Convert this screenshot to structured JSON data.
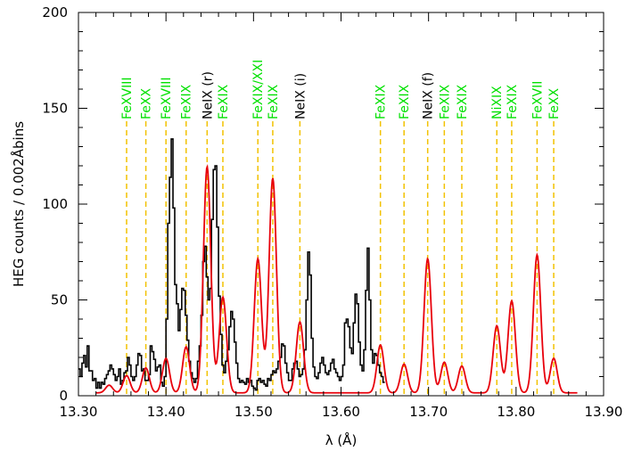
{
  "chart_data": {
    "type": "line",
    "xlabel": "λ (Å)",
    "ylabel": "HEG counts / 0.002Åbins",
    "xlim": [
      13.3,
      13.9
    ],
    "ylim": [
      0,
      200
    ],
    "x_ticks": [
      "13.30",
      "13.40",
      "13.50",
      "13.60",
      "13.70",
      "13.80",
      "13.90"
    ],
    "y_ticks": [
      "0",
      "50",
      "100",
      "150",
      "200"
    ],
    "grid": false,
    "colors": {
      "data": "#000000",
      "model": "#e8000b",
      "fe_lines": "#00e000",
      "ne_lines": "#000000",
      "markers": "#f2c200"
    },
    "line_identifications": [
      {
        "label": "FeXVIII",
        "x": 13.355,
        "element": "fe"
      },
      {
        "label": "FeXX",
        "x": 13.377,
        "element": "fe"
      },
      {
        "label": "FeXVIII",
        "x": 13.4,
        "element": "fe"
      },
      {
        "label": "FeXIX",
        "x": 13.423,
        "element": "fe"
      },
      {
        "label": "NeIX (r)",
        "x": 13.447,
        "element": "ne"
      },
      {
        "label": "FeXIX",
        "x": 13.465,
        "element": "fe"
      },
      {
        "label": "FeXIX/XXI",
        "x": 13.505,
        "element": "fe"
      },
      {
        "label": "FeXIX",
        "x": 13.522,
        "element": "fe"
      },
      {
        "label": "NeIX (i)",
        "x": 13.553,
        "element": "ne"
      },
      {
        "label": "FeXIX",
        "x": 13.645,
        "element": "fe"
      },
      {
        "label": "FeXIX",
        "x": 13.672,
        "element": "fe"
      },
      {
        "label": "NeIX (f)",
        "x": 13.699,
        "element": "ne"
      },
      {
        "label": "FeXIX",
        "x": 13.718,
        "element": "fe"
      },
      {
        "label": "FeXIX",
        "x": 13.738,
        "element": "fe"
      },
      {
        "label": "NiXIX",
        "x": 13.778,
        "element": "fe"
      },
      {
        "label": "FeXIX",
        "x": 13.795,
        "element": "fe"
      },
      {
        "label": "FeXVII",
        "x": 13.824,
        "element": "fe"
      },
      {
        "label": "FeXX",
        "x": 13.843,
        "element": "fe"
      }
    ],
    "model_background": 1.5,
    "model_peaks": [
      {
        "x": 13.335,
        "amp": 4,
        "sigma": 0.004
      },
      {
        "x": 13.355,
        "amp": 9,
        "sigma": 0.004
      },
      {
        "x": 13.377,
        "amp": 13,
        "sigma": 0.004
      },
      {
        "x": 13.4,
        "amp": 18,
        "sigma": 0.004
      },
      {
        "x": 13.423,
        "amp": 24,
        "sigma": 0.004
      },
      {
        "x": 13.447,
        "amp": 118,
        "sigma": 0.0042
      },
      {
        "x": 13.465,
        "amp": 50,
        "sigma": 0.0042
      },
      {
        "x": 13.505,
        "amp": 70,
        "sigma": 0.0042
      },
      {
        "x": 13.522,
        "amp": 112,
        "sigma": 0.0042
      },
      {
        "x": 13.553,
        "amp": 37,
        "sigma": 0.0042
      },
      {
        "x": 13.645,
        "amp": 25,
        "sigma": 0.004
      },
      {
        "x": 13.672,
        "amp": 15,
        "sigma": 0.004
      },
      {
        "x": 13.699,
        "amp": 70,
        "sigma": 0.0042
      },
      {
        "x": 13.718,
        "amp": 16,
        "sigma": 0.004
      },
      {
        "x": 13.738,
        "amp": 14,
        "sigma": 0.004
      },
      {
        "x": 13.778,
        "amp": 35,
        "sigma": 0.0042
      },
      {
        "x": 13.795,
        "amp": 48,
        "sigma": 0.0042
      },
      {
        "x": 13.824,
        "amp": 72,
        "sigma": 0.0042
      },
      {
        "x": 13.843,
        "amp": 18,
        "sigma": 0.004
      }
    ],
    "model_xrange": [
      13.32,
      13.87
    ],
    "data_histogram": {
      "x_start": 13.3,
      "bin_width": 0.002,
      "values": [
        14,
        10,
        17,
        21,
        15,
        26,
        13,
        13,
        8,
        9,
        4,
        7,
        4,
        7,
        6,
        9,
        11,
        13,
        16,
        14,
        11,
        8,
        10,
        14,
        6,
        8,
        12,
        13,
        20,
        16,
        10,
        8,
        10,
        16,
        22,
        21,
        13,
        14,
        8,
        8,
        11,
        26,
        23,
        19,
        13,
        15,
        16,
        7,
        5,
        10,
        40,
        90,
        114,
        134,
        98,
        58,
        48,
        34,
        45,
        56,
        55,
        42,
        29,
        18,
        12,
        9,
        7,
        9,
        18,
        26,
        42,
        70,
        78,
        62,
        50,
        56,
        92,
        118,
        120,
        88,
        52,
        32,
        16,
        12,
        18,
        24,
        36,
        44,
        40,
        28,
        17,
        9,
        7,
        8,
        7,
        6,
        9,
        7,
        8,
        5,
        4,
        3,
        8,
        9,
        7,
        8,
        6,
        5,
        9,
        8,
        11,
        13,
        12,
        14,
        18,
        20,
        27,
        26,
        17,
        12,
        8,
        8,
        14,
        17,
        18,
        14,
        10,
        11,
        14,
        24,
        50,
        75,
        63,
        30,
        15,
        10,
        9,
        12,
        17,
        20,
        16,
        12,
        11,
        13,
        17,
        19,
        14,
        12,
        10,
        8,
        10,
        16,
        38,
        40,
        36,
        25,
        22,
        38,
        53,
        48,
        28,
        16,
        13,
        24,
        55,
        77,
        50,
        24,
        17,
        22,
        21,
        16,
        12,
        10,
        7
      ]
    }
  }
}
